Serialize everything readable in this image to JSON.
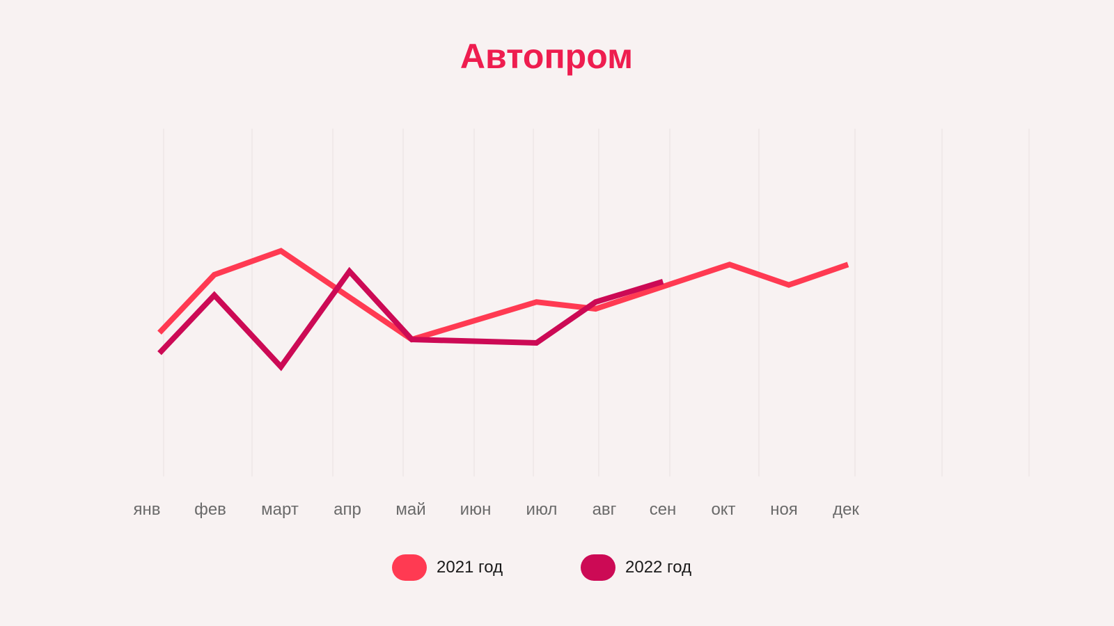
{
  "chart_data": {
    "type": "line",
    "title": "Автопром",
    "xlabel": "",
    "ylabel": "",
    "categories": [
      "янв",
      "фев",
      "март",
      "апр",
      "май",
      "июн",
      "июл",
      "авг",
      "сен",
      "окт",
      "ноя",
      "дек"
    ],
    "x": [
      0,
      0.88,
      1.95,
      3.05,
      4.05,
      5.05,
      6.1,
      7.08,
      8.08,
      9.15,
      10.1,
      11.05
    ],
    "ylim": [
      0,
      100
    ],
    "grid": true,
    "legend_position": "bottom-center",
    "series": [
      {
        "name": "2021 год",
        "color": "#ff3a52",
        "x": [
          0,
          0.88,
          1.95,
          4.05,
          6.05,
          7.0,
          9.15,
          10.1,
          11.05
        ],
        "values": [
          33,
          50,
          57,
          31,
          42,
          40,
          53,
          47,
          53
        ]
      },
      {
        "name": "2022 год",
        "color": "#cc0a55",
        "x": [
          0,
          0.88,
          1.95,
          3.05,
          4.05,
          6.05,
          7.0,
          8.08
        ],
        "values": [
          27,
          44,
          23,
          51,
          31,
          30,
          42,
          48
        ]
      }
    ]
  }
}
